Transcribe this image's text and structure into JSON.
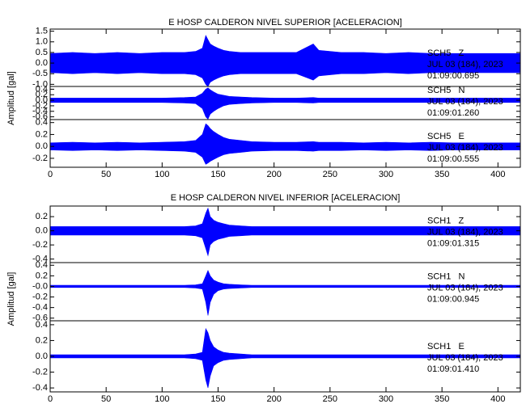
{
  "chart_data": [
    {
      "type": "waveform",
      "title": "E HOSP CALDERON NIVEL SUPERIOR [ACELERACION]",
      "ylabel": "Amplitud [gal]",
      "color": "#0000ff",
      "xlim": [
        0,
        420
      ],
      "xticks": [
        0,
        50,
        100,
        150,
        200,
        250,
        300,
        350,
        400
      ],
      "x": [
        0,
        20,
        40,
        60,
        80,
        100,
        120,
        130,
        136,
        139,
        141,
        143,
        146,
        150,
        155,
        160,
        170,
        180,
        200,
        220,
        235,
        240,
        260,
        280,
        300,
        320,
        340,
        360,
        380,
        400,
        420
      ],
      "traces": [
        {
          "name": "SCH5   Z",
          "date": "JUL 03 (184), 2023",
          "time": "01:09:00.695",
          "ylim": [
            -1.1,
            1.6
          ],
          "yticks": [
            {
              "value": -1.0,
              "label": "-1.0"
            },
            {
              "value": -0.5,
              "label": "-0.5"
            },
            {
              "value": 0,
              "label": "0.0"
            },
            {
              "value": 0.5,
              "label": "0.5"
            },
            {
              "value": 1.0,
              "label": "1.0"
            },
            {
              "value": 1.5,
              "label": "1.5"
            }
          ],
          "upper": [
            0.45,
            0.5,
            0.45,
            0.5,
            0.45,
            0.5,
            0.5,
            0.55,
            0.7,
            1.3,
            1.1,
            0.9,
            0.8,
            0.7,
            0.6,
            0.55,
            0.5,
            0.5,
            0.5,
            0.5,
            0.9,
            0.6,
            0.5,
            0.5,
            0.45,
            0.5,
            0.45,
            0.45,
            0.45,
            0.45,
            0.45
          ],
          "lower": [
            -0.45,
            -0.5,
            -0.45,
            -0.5,
            -0.45,
            -0.5,
            -0.5,
            -0.55,
            -0.7,
            -1.0,
            -1.1,
            -0.9,
            -0.8,
            -0.7,
            -0.6,
            -0.55,
            -0.5,
            -0.5,
            -0.5,
            -0.5,
            -0.8,
            -0.6,
            -0.5,
            -0.5,
            -0.45,
            -0.5,
            -0.45,
            -0.45,
            -0.45,
            -0.45,
            -0.45
          ]
        },
        {
          "name": "SCH5   N",
          "date": "JUL 03 (184), 2023",
          "time": "01:09:01.260",
          "ylim": [
            -0.7,
            0.5
          ],
          "yticks": [
            {
              "value": -0.6,
              "label": "-0.6"
            },
            {
              "value": -0.4,
              "label": "-0.4"
            },
            {
              "value": -0.2,
              "label": "-0.2"
            },
            {
              "value": 0,
              "label": "0.0"
            },
            {
              "value": 0.2,
              "label": "0.2"
            },
            {
              "value": 0.4,
              "label": "0.4"
            }
          ],
          "upper": [
            0.08,
            0.08,
            0.08,
            0.08,
            0.08,
            0.08,
            0.1,
            0.12,
            0.25,
            0.4,
            0.45,
            0.38,
            0.3,
            0.22,
            0.18,
            0.14,
            0.12,
            0.1,
            0.08,
            0.08,
            0.1,
            0.08,
            0.08,
            0.08,
            0.08,
            0.08,
            0.08,
            0.08,
            0.08,
            0.08,
            0.08
          ],
          "lower": [
            -0.08,
            -0.08,
            -0.08,
            -0.08,
            -0.08,
            -0.08,
            -0.1,
            -0.12,
            -0.3,
            -0.6,
            -0.68,
            -0.5,
            -0.4,
            -0.3,
            -0.2,
            -0.15,
            -0.12,
            -0.1,
            -0.08,
            -0.08,
            -0.1,
            -0.08,
            -0.08,
            -0.08,
            -0.08,
            -0.08,
            -0.08,
            -0.08,
            -0.08,
            -0.08,
            -0.08
          ]
        },
        {
          "name": "SCH5   E",
          "date": "JUL 03 (184), 2023",
          "time": "01:09:00.555",
          "ylim": [
            -0.35,
            0.45
          ],
          "yticks": [
            {
              "value": -0.2,
              "label": "-0.2"
            },
            {
              "value": 0,
              "label": "0.0"
            },
            {
              "value": 0.2,
              "label": "0.2"
            },
            {
              "value": 0.4,
              "label": "0.4"
            }
          ],
          "upper": [
            0.06,
            0.07,
            0.06,
            0.07,
            0.06,
            0.07,
            0.08,
            0.1,
            0.2,
            0.38,
            0.35,
            0.3,
            0.25,
            0.2,
            0.15,
            0.12,
            0.1,
            0.08,
            0.07,
            0.07,
            0.08,
            0.07,
            0.07,
            0.06,
            0.07,
            0.06,
            0.07,
            0.06,
            0.06,
            0.06,
            0.06
          ],
          "lower": [
            -0.06,
            -0.07,
            -0.06,
            -0.07,
            -0.06,
            -0.07,
            -0.08,
            -0.1,
            -0.18,
            -0.3,
            -0.28,
            -0.25,
            -0.22,
            -0.18,
            -0.14,
            -0.12,
            -0.1,
            -0.08,
            -0.07,
            -0.07,
            -0.08,
            -0.07,
            -0.07,
            -0.06,
            -0.07,
            -0.06,
            -0.07,
            -0.06,
            -0.06,
            -0.06,
            -0.06
          ]
        }
      ]
    },
    {
      "type": "waveform",
      "title": "E HOSP CALDERON NIVEL INFERIOR [ACELERACION]",
      "ylabel": "Amplitud [gal]",
      "color": "#0000ff",
      "xlim": [
        0,
        420
      ],
      "xticks": [
        0,
        50,
        100,
        150,
        200,
        250,
        300,
        350,
        400
      ],
      "x": [
        0,
        20,
        40,
        60,
        80,
        100,
        120,
        130,
        136,
        139,
        141,
        143,
        146,
        150,
        155,
        160,
        170,
        180,
        200,
        220,
        235,
        240,
        260,
        280,
        300,
        320,
        340,
        360,
        380,
        400,
        420
      ],
      "traces": [
        {
          "name": "SCH1   Z",
          "date": "JUL 03 (184), 2023",
          "time": "01:09:01.315",
          "ylim": [
            -0.45,
            0.35
          ],
          "yticks": [
            {
              "value": -0.4,
              "label": "-0.4"
            },
            {
              "value": -0.2,
              "label": "-0.2"
            },
            {
              "value": 0,
              "label": "0.0"
            },
            {
              "value": 0.2,
              "label": "0.2"
            }
          ],
          "upper": [
            0.06,
            0.06,
            0.06,
            0.06,
            0.06,
            0.06,
            0.06,
            0.07,
            0.1,
            0.25,
            0.32,
            0.2,
            0.15,
            0.12,
            0.1,
            0.08,
            0.07,
            0.06,
            0.06,
            0.06,
            0.06,
            0.06,
            0.06,
            0.06,
            0.06,
            0.06,
            0.06,
            0.06,
            0.06,
            0.06,
            0.06
          ],
          "lower": [
            -0.06,
            -0.06,
            -0.06,
            -0.06,
            -0.06,
            -0.06,
            -0.06,
            -0.07,
            -0.1,
            -0.25,
            -0.35,
            -0.2,
            -0.15,
            -0.12,
            -0.1,
            -0.08,
            -0.07,
            -0.06,
            -0.06,
            -0.06,
            -0.06,
            -0.06,
            -0.06,
            -0.06,
            -0.06,
            -0.06,
            -0.06,
            -0.06,
            -0.06,
            -0.06,
            -0.06
          ]
        },
        {
          "name": "SCH1   N",
          "date": "JUL 03 (184), 2023",
          "time": "01:09:00.945",
          "ylim": [
            -0.65,
            0.45
          ],
          "yticks": [
            {
              "value": -0.6,
              "label": "-0.6"
            },
            {
              "value": -0.4,
              "label": "-0.4"
            },
            {
              "value": -0.2,
              "label": "-0.2"
            },
            {
              "value": 0,
              "label": "-0.0"
            },
            {
              "value": 0.2,
              "label": "0.2"
            },
            {
              "value": 0.4,
              "label": "0.4"
            }
          ],
          "upper": [
            0.02,
            0.02,
            0.02,
            0.02,
            0.02,
            0.02,
            0.02,
            0.03,
            0.05,
            0.2,
            0.3,
            0.2,
            0.12,
            0.08,
            0.05,
            0.04,
            0.03,
            0.02,
            0.02,
            0.02,
            0.02,
            0.02,
            0.02,
            0.02,
            0.02,
            0.02,
            0.02,
            0.02,
            0.02,
            0.02,
            0.02
          ],
          "lower": [
            -0.02,
            -0.02,
            -0.02,
            -0.02,
            -0.02,
            -0.02,
            -0.02,
            -0.03,
            -0.05,
            -0.3,
            -0.55,
            -0.3,
            -0.15,
            -0.08,
            -0.05,
            -0.04,
            -0.03,
            -0.02,
            -0.02,
            -0.02,
            -0.02,
            -0.02,
            -0.02,
            -0.02,
            -0.02,
            -0.02,
            -0.02,
            -0.02,
            -0.02,
            -0.02,
            -0.02
          ]
        },
        {
          "name": "SCH1   E",
          "date": "JUL 03 (184), 2023",
          "time": "01:09:01.410",
          "ylim": [
            -0.45,
            0.45
          ],
          "yticks": [
            {
              "value": -0.4,
              "label": "-0.4"
            },
            {
              "value": -0.2,
              "label": "-0.2"
            },
            {
              "value": 0,
              "label": "0.0"
            },
            {
              "value": 0.2,
              "label": "0.2"
            },
            {
              "value": 0.4,
              "label": "0.4"
            }
          ],
          "upper": [
            0.02,
            0.02,
            0.02,
            0.02,
            0.02,
            0.02,
            0.02,
            0.03,
            0.05,
            0.35,
            0.3,
            0.2,
            0.12,
            0.08,
            0.05,
            0.04,
            0.03,
            0.02,
            0.02,
            0.02,
            0.02,
            0.02,
            0.02,
            0.02,
            0.02,
            0.02,
            0.02,
            0.02,
            0.02,
            0.02,
            0.02
          ],
          "lower": [
            -0.02,
            -0.02,
            -0.02,
            -0.02,
            -0.02,
            -0.02,
            -0.02,
            -0.03,
            -0.05,
            -0.3,
            -0.4,
            -0.25,
            -0.12,
            -0.08,
            -0.05,
            -0.04,
            -0.03,
            -0.02,
            -0.02,
            -0.02,
            -0.02,
            -0.02,
            -0.02,
            -0.02,
            -0.02,
            -0.02,
            -0.02,
            -0.02,
            -0.02,
            -0.02,
            -0.02
          ]
        }
      ]
    }
  ]
}
